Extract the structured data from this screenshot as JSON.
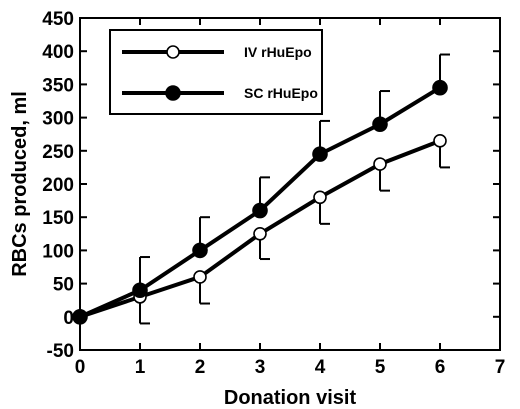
{
  "chart_data": {
    "type": "line",
    "title": "",
    "xlabel": "Donation visit",
    "ylabel": "RBCs produced, ml",
    "xlim": [
      0,
      7
    ],
    "ylim": [
      -50,
      450
    ],
    "xticks": [
      0,
      1,
      2,
      3,
      4,
      5,
      6,
      7
    ],
    "yticks": [
      -50,
      0,
      50,
      100,
      150,
      200,
      250,
      300,
      350,
      400,
      450
    ],
    "grid": false,
    "legend_position": "top-left",
    "series": [
      {
        "name": "IV rHuEpo",
        "marker": "open-circle",
        "color": "#000000",
        "x": [
          0,
          1,
          2,
          3,
          4,
          5,
          6
        ],
        "y": [
          0,
          30,
          60,
          125,
          180,
          230,
          265
        ],
        "error_lower": [
          0,
          40,
          40,
          38,
          40,
          40,
          40
        ]
      },
      {
        "name": "SC rHuEpo",
        "marker": "filled-circle",
        "color": "#000000",
        "x": [
          0,
          1,
          2,
          3,
          4,
          5,
          6
        ],
        "y": [
          0,
          40,
          100,
          160,
          245,
          290,
          345
        ],
        "error_upper": [
          0,
          50,
          50,
          50,
          50,
          50,
          50
        ]
      }
    ]
  }
}
